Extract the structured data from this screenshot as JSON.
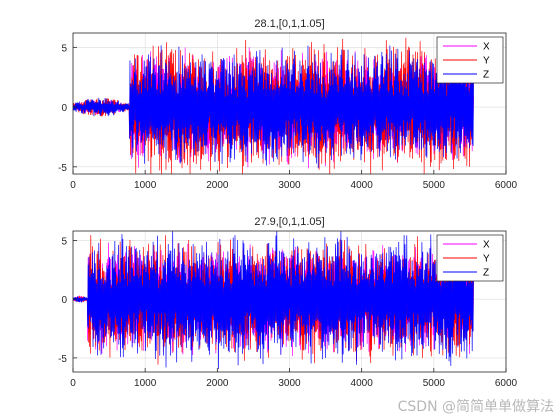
{
  "watermark": "CSDN @简简单单做算法",
  "colors": {
    "X": "#ff00ff",
    "Y": "#ff0000",
    "Z": "#0000ff",
    "grid": "#dcdcdc",
    "axis": "#262626"
  },
  "chart_data": [
    {
      "type": "line",
      "title": "28.1,[0,1,1.05]",
      "xlabel": "",
      "ylabel": "",
      "xlim": [
        0,
        6000
      ],
      "ylim": [
        -5.6,
        6.2
      ],
      "xticks": [
        0,
        1000,
        2000,
        3000,
        4000,
        5000,
        6000
      ],
      "yticks": [
        -5,
        0,
        5
      ],
      "grid": true,
      "legend": "top-right",
      "series": [
        {
          "name": "X",
          "color": "#ff00ff",
          "envelope": {
            "samples": 5550,
            "onset": 780,
            "pre_onset_amplitude": 0.6,
            "peak": 5.2
          }
        },
        {
          "name": "Y",
          "color": "#ff0000",
          "envelope": {
            "samples": 5550,
            "onset": 780,
            "pre_onset_amplitude": 0.8,
            "peak": 6.1
          }
        },
        {
          "name": "Z",
          "color": "#0000ff",
          "envelope": {
            "samples": 5550,
            "onset": 780,
            "pre_onset_amplitude": 0.8,
            "peak": 5.5
          }
        }
      ]
    },
    {
      "type": "line",
      "title": "27.9,[0,1,1.05]",
      "xlabel": "",
      "ylabel": "",
      "xlim": [
        0,
        6000
      ],
      "ylim": [
        -6.2,
        5.8
      ],
      "xticks": [
        0,
        1000,
        2000,
        3000,
        4000,
        5000,
        6000
      ],
      "yticks": [
        -5,
        0,
        5
      ],
      "grid": true,
      "legend": "top-right",
      "series": [
        {
          "name": "X",
          "color": "#ff00ff",
          "envelope": {
            "samples": 5550,
            "onset": 200,
            "pre_onset_amplitude": 0.3,
            "peak": 5.0
          }
        },
        {
          "name": "Y",
          "color": "#ff0000",
          "envelope": {
            "samples": 5550,
            "onset": 200,
            "pre_onset_amplitude": 0.3,
            "peak": 5.6
          }
        },
        {
          "name": "Z",
          "color": "#0000ff",
          "envelope": {
            "samples": 5550,
            "onset": 200,
            "pre_onset_amplitude": 0.3,
            "peak": 6.1
          }
        }
      ]
    }
  ]
}
